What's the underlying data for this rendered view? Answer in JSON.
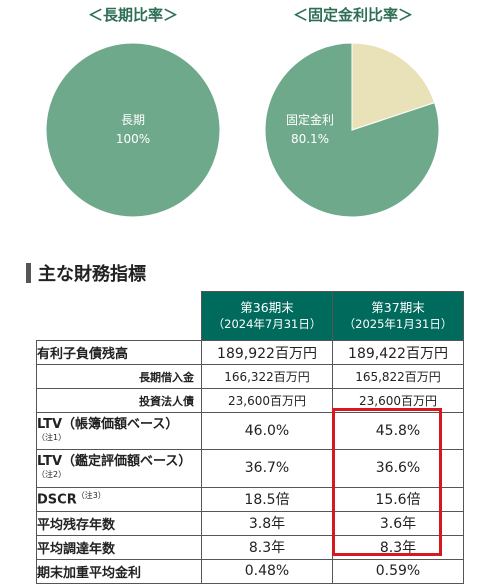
{
  "colors": {
    "pie_main": "#6fa98c",
    "pie_other": "#e9e2b8",
    "header_bg": "#006a5c",
    "highlight": "#d7191f"
  },
  "chart_data": [
    {
      "type": "pie",
      "title": "＜長期比率＞",
      "slices": [
        {
          "label": "長期",
          "value": 100,
          "value_label": "100%"
        }
      ]
    },
    {
      "type": "pie",
      "title": "＜固定金利比率＞",
      "slices": [
        {
          "label": "固定金利",
          "value": 80.1,
          "value_label": "80.1%"
        },
        {
          "label": "",
          "value": 19.9,
          "value_label": ""
        }
      ]
    }
  ],
  "section": {
    "title": "主な財務指標"
  },
  "table": {
    "columns": [
      {
        "period": "第36期末",
        "date": "（2024年7月31日）"
      },
      {
        "period": "第37期末",
        "date": "（2025年1月31日）"
      }
    ],
    "rows": [
      {
        "label": "有利子負債残高",
        "note": "",
        "sub": false,
        "values": [
          "189,922百万円",
          "189,422百万円"
        ]
      },
      {
        "label": "長期借入金",
        "note": "",
        "sub": true,
        "values": [
          "166,322百万円",
          "165,822百万円"
        ]
      },
      {
        "label": "投資法人債",
        "note": "",
        "sub": true,
        "values": [
          "23,600百万円",
          "23,600百万円"
        ]
      },
      {
        "label": "LTV（帳簿価額ベース）",
        "note": "（注1）",
        "sub": false,
        "values": [
          "46.0%",
          "45.8%"
        ]
      },
      {
        "label": "LTV（鑑定評価額ベース）",
        "note": "（注2）",
        "sub": false,
        "values": [
          "36.7%",
          "36.6%"
        ]
      },
      {
        "label": "DSCR",
        "note": "（注3）",
        "sub": false,
        "values": [
          "18.5倍",
          "15.6倍"
        ]
      },
      {
        "label": "平均残存年数",
        "note": "",
        "sub": false,
        "values": [
          "3.8年",
          "3.6年"
        ]
      },
      {
        "label": "平均調達年数",
        "note": "",
        "sub": false,
        "values": [
          "8.3年",
          "8.3年"
        ]
      },
      {
        "label": "期末加重平均金利",
        "note": "",
        "sub": false,
        "values": [
          "0.48%",
          "0.59%"
        ]
      }
    ]
  }
}
